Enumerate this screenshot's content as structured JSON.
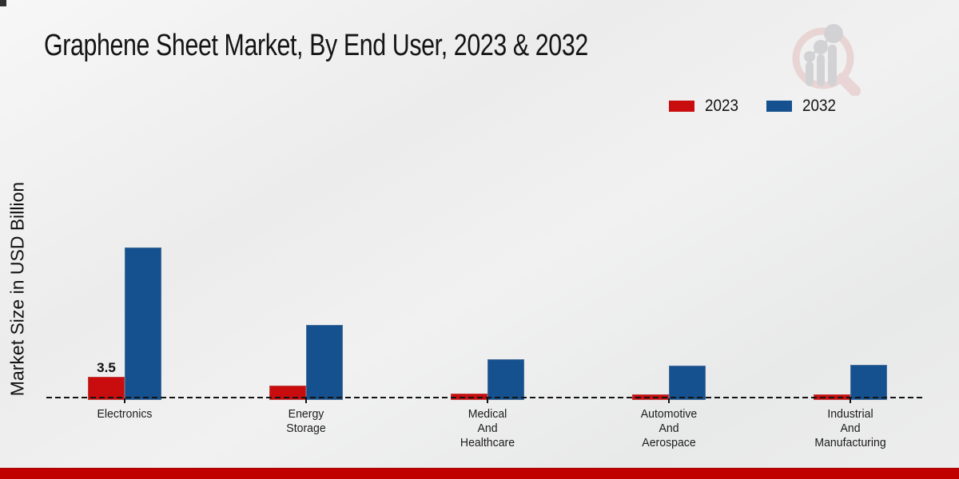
{
  "header": {
    "title": "Graphene Sheet Market, By End User, 2023 & 2032"
  },
  "legend": {
    "items": [
      {
        "label": "2023",
        "color": "#c90d0e"
      },
      {
        "label": "2032",
        "color": "#16518f"
      }
    ]
  },
  "watermark_icon": "magnifier-bar-chart-logo",
  "footer": {
    "bar_color": "#c00000"
  },
  "corner_square_color": "#2f2f2f",
  "chart_data": {
    "type": "bar",
    "title": "Graphene Sheet Market, By End User, 2023 & 2032",
    "xlabel": "",
    "ylabel": "Market Size in USD Billion",
    "categories": [
      "Electronics",
      "Energy Storage",
      "Medical And Healthcare",
      "Automotive And Aerospace",
      "Industrial And Manufacturing"
    ],
    "series": [
      {
        "name": "2023",
        "color": "#c90d0e",
        "values": [
          3.5,
          2.2,
          1.0,
          0.85,
          0.85
        ],
        "value_labels": [
          "3.5",
          "",
          "",
          "",
          ""
        ]
      },
      {
        "name": "2032",
        "color": "#16518f",
        "values": [
          23.0,
          11.3,
          6.2,
          5.2,
          5.3
        ],
        "value_labels": [
          "",
          "",
          "",
          "",
          ""
        ]
      }
    ],
    "ylim": [
      0,
      25
    ],
    "grid": false,
    "axis_line_style": "dashed",
    "legend_position": "top-right"
  }
}
